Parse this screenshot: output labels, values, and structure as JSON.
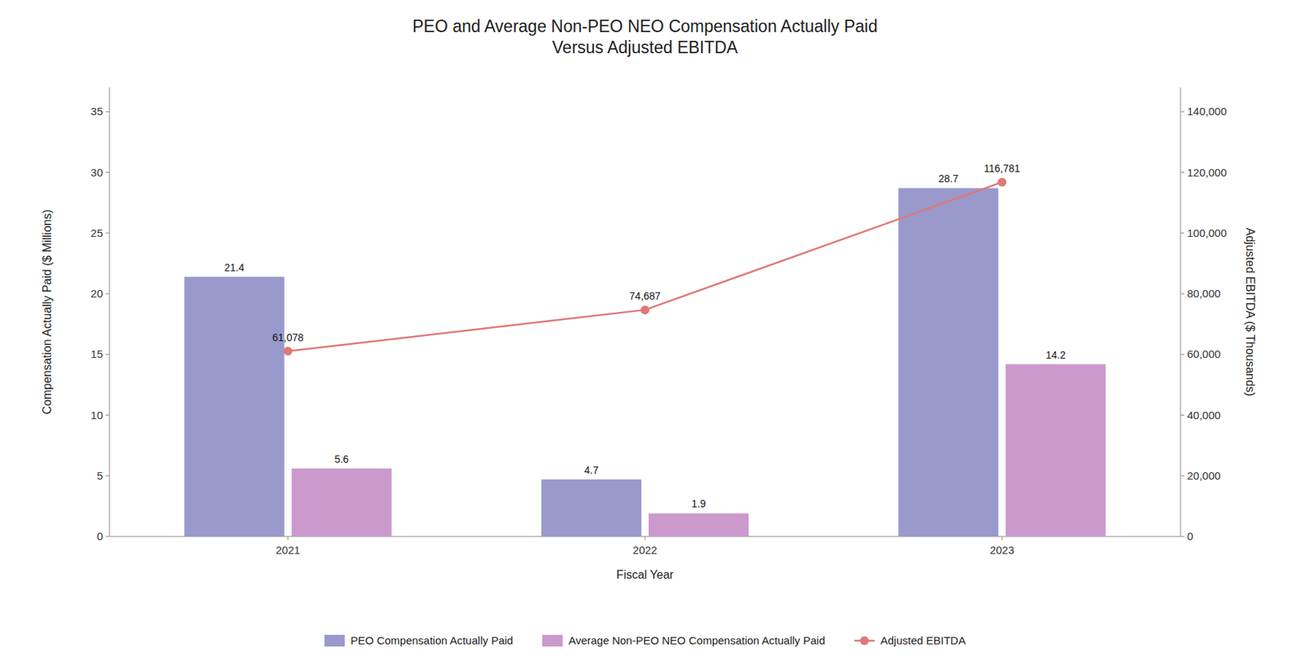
{
  "chart_data": {
    "type": "bar",
    "title": "PEO and Average Non-PEO NEO Compensation Actually Paid\nVersus Adjusted EBITDA",
    "categories": [
      "2021",
      "2022",
      "2023"
    ],
    "series": [
      {
        "name": "PEO Compensation Actually Paid",
        "color": "#9999cc",
        "values": [
          21.4,
          4.7,
          28.7
        ]
      },
      {
        "name": "Average Non-PEO NEO Compensation Actually Paid",
        "color": "#cc99cc",
        "values": [
          5.6,
          1.9,
          14.2
        ]
      },
      {
        "name": "Adjusted EBITDA",
        "type": "line",
        "axis": "y2",
        "color": "#e07878",
        "marker": "circle",
        "values": [
          61078,
          74687,
          116781
        ],
        "value_labels": [
          "61,078",
          "74,687",
          "116,781"
        ]
      }
    ],
    "xlabel": "Fiscal Year",
    "ylabel": "Compensation Actually Paid ($ Millions)",
    "y2label": "Adjusted EBITDA ($ Thousands)",
    "ylim": [
      0,
      37
    ],
    "yticks": [
      0,
      5,
      10,
      15,
      20,
      25,
      30,
      35
    ],
    "y2lim": [
      0,
      148000
    ],
    "y2ticks": [
      0,
      {
        "value": 20000,
        "label": "20,000"
      },
      {
        "value": 40000,
        "label": "40,000"
      },
      {
        "value": 60000,
        "label": "60,000"
      },
      {
        "value": 80000,
        "label": "80,000"
      },
      {
        "value": 100000,
        "label": "100,000"
      },
      {
        "value": 120000,
        "label": "120,000"
      },
      {
        "value": 140000,
        "label": "140,000"
      }
    ],
    "data_labels": true,
    "grid": false,
    "legend": "bottom"
  }
}
